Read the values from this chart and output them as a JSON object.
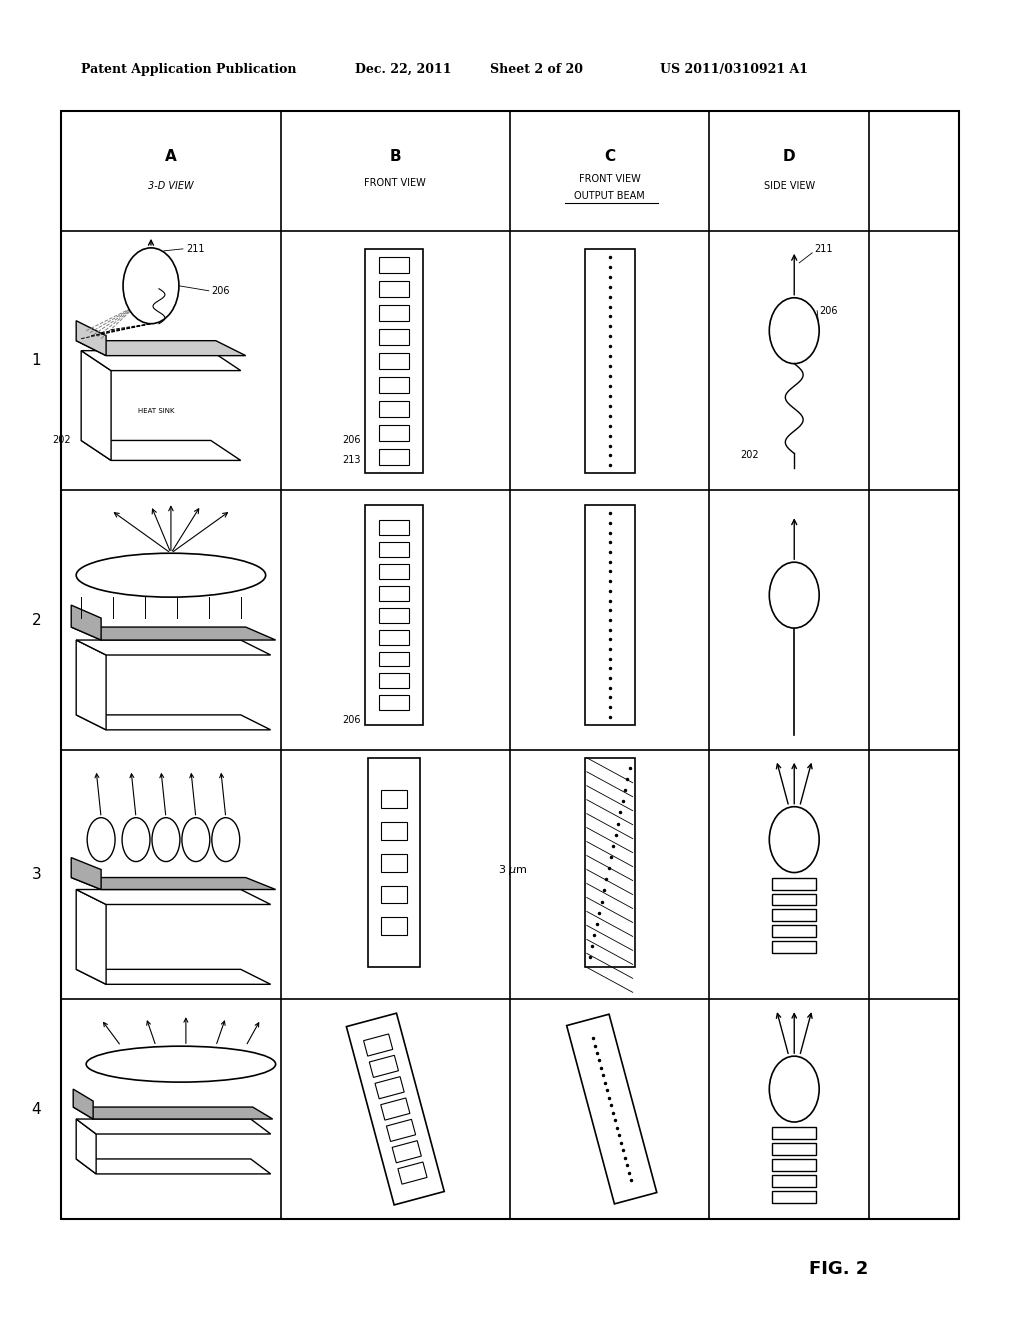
{
  "bg_color": "#ffffff",
  "header_text": "Patent Application Publication",
  "header_date": "Dec. 22, 2011",
  "header_sheet": "Sheet 2 of 20",
  "header_patent": "US 2011/0310921 A1",
  "fig_label": "FIG. 2"
}
